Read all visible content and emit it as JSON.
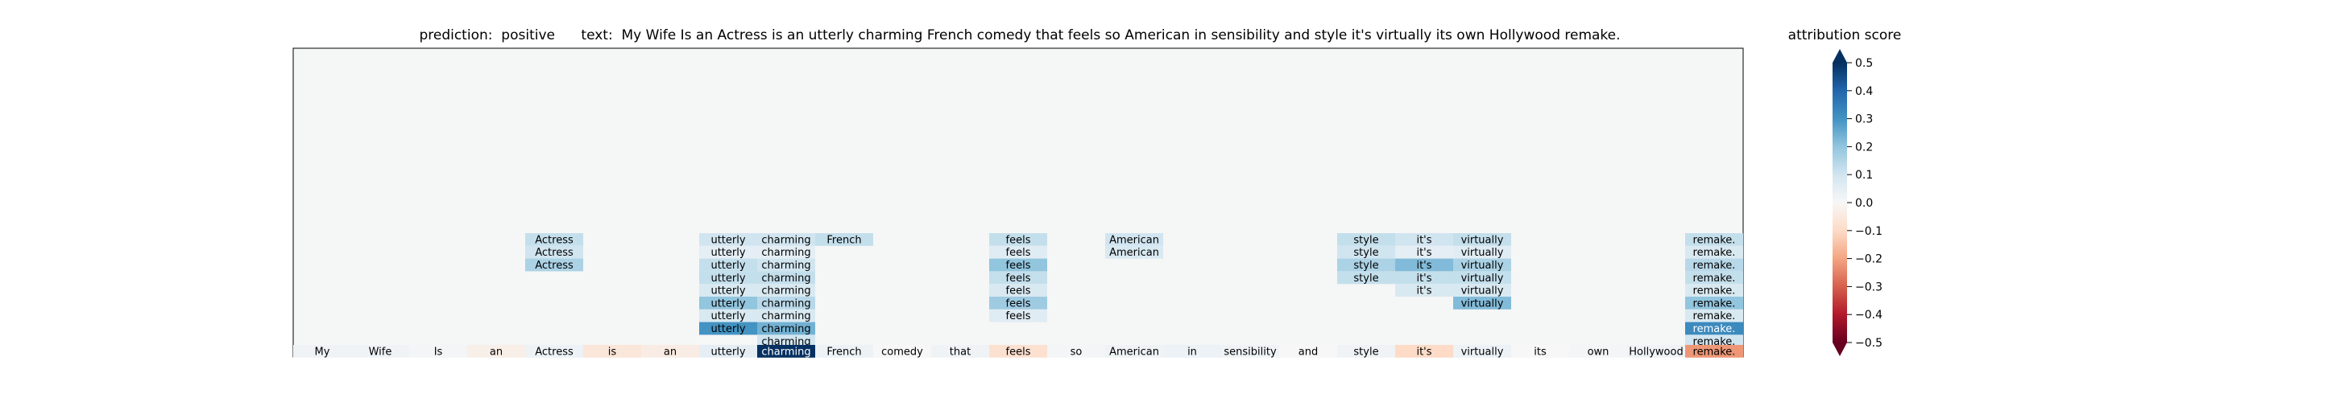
{
  "title_prefix": "prediction:",
  "prediction": "positive",
  "text_prefix": "text:",
  "text": "My Wife Is an Actress is an utterly charming French comedy that feels so American in sensibility and style it's virtually its own Hollywood remake.",
  "colorbar": {
    "title": "attribution score",
    "range": [
      -0.5,
      0.5
    ],
    "ticks": [
      0.5,
      0.4,
      0.3,
      0.2,
      0.1,
      0.0,
      -0.1,
      -0.2,
      -0.3,
      -0.4,
      -0.5
    ],
    "tick_labels": [
      "0.5",
      "0.4",
      "0.3",
      "0.2",
      "0.1",
      "0.0",
      "−0.1",
      "−0.2",
      "−0.3",
      "−0.4",
      "−0.5"
    ],
    "colormap": "RdBu"
  },
  "chart_data": {
    "type": "heatmap",
    "tokens": [
      "My",
      "Wife",
      "Is",
      "an",
      "Actress",
      "is",
      "an",
      "utterly",
      "charming",
      "French",
      "comedy",
      "that",
      "feels",
      "so",
      "American",
      "in",
      "sensibility",
      "and",
      "style",
      "it's",
      "virtually",
      "its",
      "own",
      "Hollywood",
      "remake."
    ],
    "base_scores": [
      0.02,
      0.02,
      0.01,
      -0.03,
      0.03,
      -0.06,
      -0.04,
      0.05,
      0.5,
      0.03,
      0.0,
      0.02,
      -0.08,
      0.01,
      0.02,
      0.03,
      0.02,
      0.0,
      0.02,
      -0.1,
      0.03,
      0.0,
      0.01,
      0.02,
      -0.22
    ],
    "rows": [
      {
        "0": 0,
        "4": 0.12,
        "7": 0.1,
        "8": 0.1,
        "9": 0.12,
        "12": 0.12,
        "14": 0.1,
        "18": 0.12,
        "19": 0.1,
        "20": 0.12,
        "24": 0.12
      },
      {
        "4": 0.1,
        "7": 0.05,
        "8": 0.05,
        "12": 0.06,
        "14": 0.08,
        "18": 0.1,
        "19": 0.05,
        "20": 0.06,
        "24": 0.08
      },
      {
        "4": 0.16,
        "7": 0.12,
        "8": 0.1,
        "12": 0.2,
        "18": 0.16,
        "19": 0.22,
        "20": 0.16,
        "24": 0.14
      },
      {
        "7": 0.12,
        "8": 0.12,
        "12": 0.12,
        "18": 0.12,
        "19": 0.12,
        "20": 0.12,
        "24": 0.12
      },
      {
        "7": 0.08,
        "8": 0.08,
        "12": 0.08,
        "19": 0.08,
        "20": 0.08,
        "24": 0.08
      },
      {
        "7": 0.2,
        "8": 0.14,
        "12": 0.18,
        "20": 0.22,
        "24": 0.2
      },
      {
        "7": 0.08,
        "8": 0.08,
        "12": 0.06,
        "24": 0.08
      },
      {
        "7": 0.3,
        "8": 0.24,
        "24": 0.32
      },
      {
        "8": 0.1,
        "24": 0.1
      }
    ]
  }
}
